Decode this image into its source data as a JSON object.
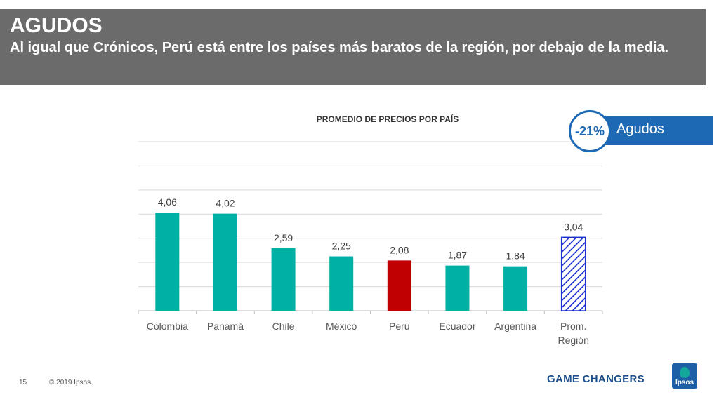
{
  "header": {
    "title": "AGUDOS",
    "subtitle": "Al igual que Crónicos, Perú está entre los países más baratos de la región, por debajo de la media."
  },
  "badge": {
    "value": "-21%",
    "label": "Agudos",
    "color": "#1d69b3"
  },
  "footer": {
    "page_number": "15",
    "copyright": "© 2019 Ipsos.",
    "brand": "GAME CHANGERS",
    "logo_text": "Ipsos"
  },
  "chart_data": {
    "type": "bar",
    "title": "PROMEDIO DE PRECIOS POR PAÍS",
    "xlabel": "",
    "ylabel": "",
    "categories": [
      "Colombia",
      "Panamá",
      "Chile",
      "México",
      "Perú",
      "Ecuador",
      "Argentina",
      "Prom. Región"
    ],
    "values": [
      4.06,
      4.02,
      2.59,
      2.25,
      2.08,
      1.87,
      1.84,
      3.04
    ],
    "data_labels": [
      "4,06",
      "4,02",
      "2,59",
      "2,25",
      "2,08",
      "1,87",
      "1,84",
      "3,04"
    ],
    "ylim": [
      0,
      7
    ],
    "grid": true,
    "colors": {
      "default": "#00b0a4",
      "highlight": "#c00000",
      "average_pattern": "#1a2fd1"
    },
    "highlight_category": "Perú",
    "average_category": "Prom. Región"
  }
}
